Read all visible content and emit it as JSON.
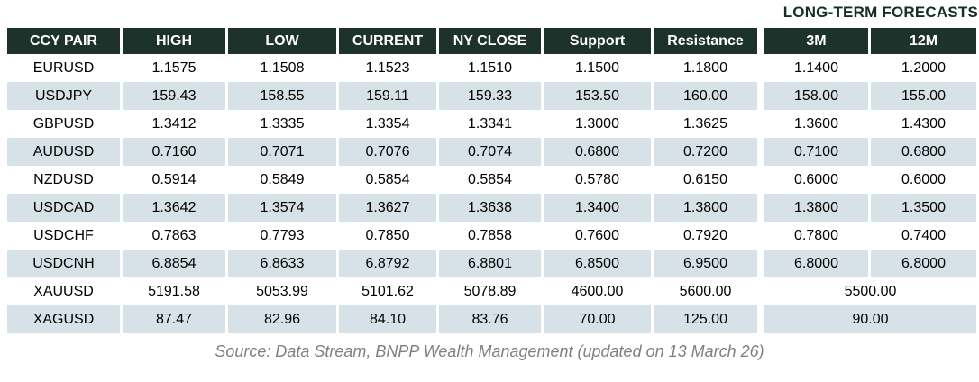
{
  "chart_data": {
    "type": "table",
    "title": "LONG-TERM FORECASTS",
    "columns": [
      "CCY PAIR",
      "HIGH",
      "LOW",
      "CURRENT",
      "NY CLOSE",
      "Support",
      "Resistance",
      "3M",
      "12M"
    ],
    "long_term_forecast_columns": [
      "3M",
      "12M"
    ],
    "rows": [
      {
        "cells": [
          "EURUSD",
          "1.1575",
          "1.1508",
          "1.1523",
          "1.1510",
          "1.1500",
          "1.1800",
          "1.1400",
          "1.2000"
        ],
        "merged_forecast": false
      },
      {
        "cells": [
          "USDJPY",
          "159.43",
          "158.55",
          "159.11",
          "159.33",
          "153.50",
          "160.00",
          "158.00",
          "155.00"
        ],
        "merged_forecast": false
      },
      {
        "cells": [
          "GBPUSD",
          "1.3412",
          "1.3335",
          "1.3354",
          "1.3341",
          "1.3000",
          "1.3625",
          "1.3600",
          "1.4300"
        ],
        "merged_forecast": false
      },
      {
        "cells": [
          "AUDUSD",
          "0.7160",
          "0.7071",
          "0.7076",
          "0.7074",
          "0.6800",
          "0.7200",
          "0.7100",
          "0.6800"
        ],
        "merged_forecast": false
      },
      {
        "cells": [
          "NZDUSD",
          "0.5914",
          "0.5849",
          "0.5854",
          "0.5854",
          "0.5780",
          "0.6150",
          "0.6000",
          "0.6000"
        ],
        "merged_forecast": false
      },
      {
        "cells": [
          "USDCAD",
          "1.3642",
          "1.3574",
          "1.3627",
          "1.3638",
          "1.3400",
          "1.3800",
          "1.3800",
          "1.3500"
        ],
        "merged_forecast": false
      },
      {
        "cells": [
          "USDCHF",
          "0.7863",
          "0.7793",
          "0.7850",
          "0.7858",
          "0.7600",
          "0.7920",
          "0.7800",
          "0.7400"
        ],
        "merged_forecast": false
      },
      {
        "cells": [
          "USDCNH",
          "6.8854",
          "6.8633",
          "6.8792",
          "6.8801",
          "6.8500",
          "6.9500",
          "6.8000",
          "6.8000"
        ],
        "merged_forecast": false
      },
      {
        "cells": [
          "XAUUSD",
          "5191.58",
          "5053.99",
          "5101.62",
          "5078.89",
          "4600.00",
          "5600.00",
          "5500.00"
        ],
        "merged_forecast": true
      },
      {
        "cells": [
          "XAGUSD",
          "87.47",
          "82.96",
          "84.10",
          "83.76",
          "70.00",
          "125.00",
          "90.00"
        ],
        "merged_forecast": true
      }
    ],
    "note": "Source: Data Stream, BNPP Wealth Management (updated on 13 March 26)"
  },
  "colors": {
    "header_bg": "#1d322b",
    "header_text": "#ffffff",
    "alt_row_bg": "#d7e1e8",
    "body_text": "#000000",
    "forecast_label_text": "#152e28",
    "source_text": "#808080"
  }
}
